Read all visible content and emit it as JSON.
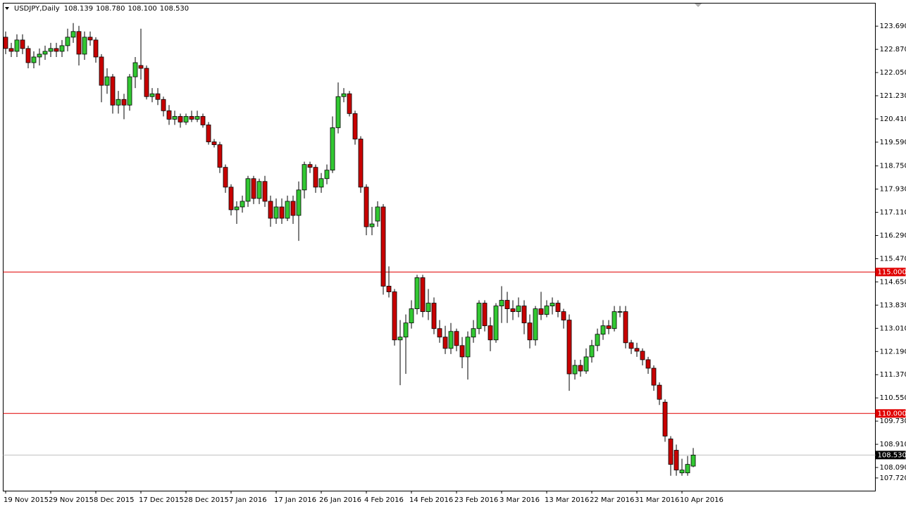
{
  "chart_data": {
    "type": "candlestick",
    "title": "USDJPY,Daily",
    "last_quote": [
      "108.139",
      "108.780",
      "108.100",
      "108.530"
    ],
    "categories": [
      "19 Nov 2015",
      null,
      null,
      null,
      null,
      null,
      null,
      null,
      "29 Nov 2015",
      null,
      null,
      null,
      null,
      null,
      null,
      null,
      "8 Dec 2015",
      null,
      null,
      null,
      null,
      null,
      null,
      null,
      "17 Dec 2015",
      null,
      null,
      null,
      null,
      null,
      null,
      null,
      "28 Dec 2015",
      null,
      null,
      null,
      null,
      null,
      null,
      null,
      "7 Jan 2016",
      null,
      null,
      null,
      null,
      null,
      null,
      null,
      "17 Jan 2016",
      null,
      null,
      null,
      null,
      null,
      null,
      null,
      "26 Jan 2016",
      null,
      null,
      null,
      null,
      null,
      null,
      null,
      "4 Feb 2016",
      null,
      null,
      null,
      null,
      null,
      null,
      null,
      "14 Feb 2016",
      null,
      null,
      null,
      null,
      null,
      null,
      null,
      "23 Feb 2016",
      null,
      null,
      null,
      null,
      null,
      null,
      null,
      "3 Mar 2016",
      null,
      null,
      null,
      null,
      null,
      null,
      null,
      "13 Mar 2016",
      null,
      null,
      null,
      null,
      null,
      null,
      null,
      "22 Mar 2016",
      null,
      null,
      null,
      null,
      null,
      null,
      null,
      "31 Mar 2016",
      null,
      null,
      null,
      null,
      null,
      null,
      null,
      "10 Apr 2016",
      null,
      null
    ],
    "series": [
      {
        "up_color": "#32c832",
        "down_color": "#c80000",
        "wick_color": "#000000",
        "open": [
          123.3,
          122.9,
          122.8,
          123.2,
          122.9,
          122.4,
          122.6,
          122.7,
          122.8,
          122.9,
          122.8,
          123.0,
          123.3,
          123.5,
          122.7,
          123.3,
          123.2,
          122.6,
          121.6,
          121.9,
          120.9,
          121.1,
          120.9,
          121.9,
          122.3,
          122.2,
          121.2,
          121.3,
          121.1,
          120.7,
          120.4,
          120.5,
          120.3,
          120.5,
          120.4,
          120.5,
          120.2,
          119.6,
          119.5,
          118.7,
          118.0,
          117.2,
          117.3,
          117.5,
          118.3,
          117.6,
          118.2,
          117.5,
          116.9,
          117.3,
          116.9,
          117.5,
          117.0,
          117.9,
          118.8,
          118.7,
          118.0,
          118.3,
          118.6,
          120.1,
          121.2,
          121.3,
          120.6,
          119.7,
          118.0,
          116.6,
          116.8,
          117.3,
          114.5,
          114.3,
          112.6,
          112.7,
          113.2,
          113.7,
          114.8,
          113.6,
          113.9,
          113.0,
          112.7,
          112.3,
          112.9,
          112.4,
          112.0,
          112.7,
          113.0,
          113.9,
          113.1,
          112.6,
          113.8,
          114.0,
          113.7,
          113.6,
          113.8,
          113.2,
          112.6,
          113.7,
          113.5,
          113.8,
          113.9,
          113.6,
          113.3,
          111.4,
          111.7,
          111.5,
          112.0,
          112.4,
          112.8,
          113.1,
          113.0,
          113.6,
          113.6,
          112.5,
          112.3,
          112.2,
          111.9,
          111.6,
          111.0,
          110.4,
          109.1,
          108.7,
          107.9,
          107.9,
          108.139
        ],
        "high": [
          123.5,
          123.1,
          123.4,
          123.4,
          123.0,
          122.8,
          122.9,
          123.0,
          123.1,
          123.1,
          123.2,
          123.6,
          123.8,
          123.7,
          123.5,
          123.5,
          123.3,
          122.7,
          122.2,
          122.0,
          121.4,
          121.3,
          122.0,
          122.6,
          123.6,
          122.3,
          121.5,
          121.5,
          121.2,
          120.9,
          120.7,
          120.6,
          120.6,
          120.7,
          120.7,
          120.6,
          120.3,
          119.7,
          119.6,
          118.8,
          118.1,
          117.5,
          117.7,
          118.4,
          118.4,
          118.3,
          118.4,
          117.7,
          117.6,
          117.6,
          117.7,
          117.7,
          118.2,
          118.9,
          118.9,
          118.8,
          118.5,
          118.8,
          120.5,
          121.7,
          121.5,
          121.4,
          120.7,
          119.8,
          118.1,
          117.3,
          117.5,
          117.4,
          115.2,
          114.4,
          113.3,
          113.5,
          114.0,
          114.9,
          114.9,
          114.4,
          114.1,
          113.3,
          113.1,
          113.2,
          113.0,
          112.7,
          112.9,
          113.3,
          114.0,
          114.0,
          113.4,
          113.9,
          114.5,
          114.3,
          114.0,
          114.1,
          114.0,
          113.5,
          113.8,
          114.3,
          114.0,
          114.1,
          114.0,
          113.7,
          113.5,
          111.9,
          111.9,
          112.3,
          112.6,
          113.0,
          113.3,
          113.3,
          113.8,
          113.8,
          113.8,
          112.6,
          112.5,
          112.3,
          112.0,
          111.7,
          111.1,
          110.5,
          109.2,
          108.9,
          108.4,
          108.5,
          108.78
        ],
        "low": [
          122.7,
          122.6,
          122.6,
          122.7,
          122.2,
          122.2,
          122.3,
          122.5,
          122.6,
          122.6,
          122.6,
          122.8,
          123.1,
          122.3,
          122.5,
          123.0,
          122.4,
          121.0,
          121.3,
          120.6,
          120.6,
          120.4,
          120.7,
          121.5,
          121.8,
          121.1,
          121.0,
          120.9,
          120.5,
          120.2,
          120.2,
          120.1,
          120.2,
          120.3,
          120.3,
          120.1,
          119.5,
          119.4,
          118.5,
          117.8,
          117.0,
          116.7,
          117.1,
          117.3,
          117.4,
          117.4,
          117.3,
          116.6,
          116.7,
          116.7,
          116.8,
          116.7,
          116.1,
          117.6,
          118.5,
          117.8,
          117.8,
          118.1,
          118.5,
          119.9,
          121.0,
          120.5,
          119.5,
          117.8,
          116.3,
          116.3,
          116.6,
          114.2,
          114.1,
          112.4,
          111.0,
          111.4,
          113.0,
          113.5,
          113.4,
          113.3,
          112.8,
          112.5,
          112.1,
          112.1,
          112.2,
          111.6,
          111.2,
          112.5,
          112.8,
          112.9,
          112.2,
          112.5,
          113.2,
          113.2,
          113.3,
          113.4,
          112.8,
          112.3,
          112.4,
          113.3,
          113.4,
          113.5,
          113.4,
          113.0,
          110.8,
          111.2,
          111.3,
          111.4,
          111.8,
          112.2,
          112.6,
          112.8,
          112.9,
          113.4,
          112.3,
          112.1,
          112.0,
          111.7,
          111.4,
          110.8,
          110.3,
          109.0,
          107.8,
          107.8,
          107.8,
          107.8,
          108.1
        ],
        "close": [
          122.9,
          122.8,
          123.2,
          122.9,
          122.4,
          122.6,
          122.7,
          122.8,
          122.9,
          122.8,
          123.0,
          123.3,
          123.5,
          122.7,
          123.3,
          123.2,
          122.6,
          121.6,
          121.9,
          120.9,
          121.1,
          120.9,
          121.9,
          122.4,
          122.2,
          121.2,
          121.3,
          121.1,
          120.7,
          120.4,
          120.5,
          120.3,
          120.5,
          120.4,
          120.5,
          120.2,
          119.6,
          119.5,
          118.7,
          118.0,
          117.2,
          117.3,
          117.5,
          118.3,
          117.6,
          118.2,
          117.5,
          116.9,
          117.3,
          116.9,
          117.5,
          117.0,
          117.9,
          118.8,
          118.7,
          118.0,
          118.3,
          118.6,
          120.1,
          121.2,
          121.3,
          120.6,
          119.7,
          118.0,
          116.6,
          116.7,
          117.3,
          114.5,
          114.3,
          112.6,
          112.7,
          113.2,
          113.7,
          114.8,
          113.6,
          113.9,
          113.0,
          112.7,
          112.3,
          112.9,
          112.4,
          112.0,
          112.7,
          113.0,
          113.9,
          113.1,
          112.6,
          113.8,
          114.0,
          113.7,
          113.6,
          113.8,
          113.2,
          112.6,
          113.7,
          113.5,
          113.8,
          113.9,
          113.6,
          113.3,
          111.4,
          111.7,
          111.5,
          112.0,
          112.4,
          112.8,
          113.1,
          113.0,
          113.6,
          113.6,
          112.5,
          112.3,
          112.2,
          111.9,
          111.6,
          111.0,
          110.5,
          109.2,
          108.2,
          108.0,
          108.0,
          108.2,
          108.53
        ]
      }
    ],
    "ylim": [
      107.27,
      124.49
    ],
    "yticks": [
      {
        "value": 123.69,
        "label": "123.690"
      },
      {
        "value": 122.87,
        "label": "122.870"
      },
      {
        "value": 122.05,
        "label": "122.050"
      },
      {
        "value": 121.23,
        "label": "121.230"
      },
      {
        "value": 120.41,
        "label": "120.410"
      },
      {
        "value": 119.59,
        "label": "119.590"
      },
      {
        "value": 118.75,
        "label": "118.750"
      },
      {
        "value": 117.93,
        "label": "117.930"
      },
      {
        "value": 117.11,
        "label": "117.110"
      },
      {
        "value": 116.29,
        "label": "116.290"
      },
      {
        "value": 115.47,
        "label": "115.470"
      },
      {
        "value": 114.65,
        "label": "114.650"
      },
      {
        "value": 113.83,
        "label": "113.830"
      },
      {
        "value": 113.01,
        "label": "113.010"
      },
      {
        "value": 112.19,
        "label": "112.190"
      },
      {
        "value": 111.37,
        "label": "111.370"
      },
      {
        "value": 110.55,
        "label": "110.550"
      },
      {
        "value": 109.73,
        "label": "109.730"
      },
      {
        "value": 108.91,
        "label": "108.910"
      },
      {
        "value": 108.09,
        "label": "108.090"
      },
      {
        "value": 107.72,
        "label": "107.720"
      }
    ],
    "hlines": [
      {
        "value": 115,
        "label": "115.000",
        "color": "#e00000"
      },
      {
        "value": 110,
        "label": "110.000",
        "color": "#e00000"
      }
    ],
    "current_price": {
      "value": 108.53,
      "label": "108.530",
      "color": "#c0c0c0"
    },
    "grid": false
  }
}
